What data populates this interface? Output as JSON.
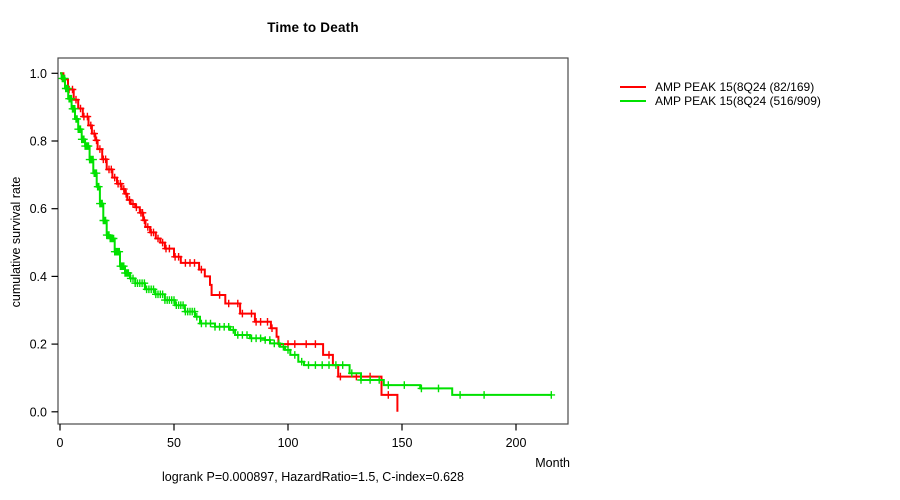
{
  "title": "Time to Death",
  "caption": "logrank P=0.000897, HazardRatio=1.5, C-index=0.628",
  "axes": {
    "y_label": "cumulative survival rate",
    "x_label": "Month"
  },
  "chart_data": {
    "type": "line",
    "subtype": "kaplan-meier-step-survival",
    "title": "Time to Death",
    "xlabel": "Month",
    "ylabel": "cumulative survival rate",
    "xlim": [
      0,
      223
    ],
    "ylim": [
      0.0,
      1.0
    ],
    "x_ticks": [
      0,
      50,
      100,
      150,
      200
    ],
    "y_ticks": [
      0.0,
      0.2,
      0.4,
      0.6,
      0.8,
      1.0
    ],
    "grid": false,
    "legend_position": "right-outside",
    "annotation": "logrank P=0.000897, HazardRatio=1.5, C-index=0.628",
    "series": [
      {
        "name": "AMP PEAK 15(8Q24 (82/169)",
        "color": "#ff0000",
        "end_month": 148,
        "steps": [
          [
            0,
            1.0
          ],
          [
            1.5,
            0.982
          ],
          [
            3.5,
            0.952
          ],
          [
            6,
            0.922
          ],
          [
            8,
            0.896
          ],
          [
            10,
            0.872
          ],
          [
            12.5,
            0.846
          ],
          [
            14,
            0.822
          ],
          [
            15.5,
            0.802
          ],
          [
            16.5,
            0.776
          ],
          [
            18.5,
            0.746
          ],
          [
            20.5,
            0.716
          ],
          [
            23,
            0.692
          ],
          [
            25,
            0.674
          ],
          [
            27,
            0.658
          ],
          [
            28.5,
            0.644
          ],
          [
            29.5,
            0.626
          ],
          [
            31,
            0.614
          ],
          [
            33,
            0.604
          ],
          [
            35,
            0.588
          ],
          [
            36.5,
            0.566
          ],
          [
            37.5,
            0.546
          ],
          [
            39.5,
            0.53
          ],
          [
            42,
            0.512
          ],
          [
            44,
            0.5
          ],
          [
            46,
            0.482
          ],
          [
            50,
            0.458
          ],
          [
            53,
            0.44
          ],
          [
            61,
            0.42
          ],
          [
            63.5,
            0.4
          ],
          [
            65.8,
            0.375
          ],
          [
            66.5,
            0.345
          ],
          [
            72.5,
            0.32
          ],
          [
            79,
            0.29
          ],
          [
            85.5,
            0.266
          ],
          [
            92.5,
            0.247
          ],
          [
            95,
            0.222
          ],
          [
            95.8,
            0.2
          ],
          [
            115.4,
            0.168
          ],
          [
            119.7,
            0.138
          ],
          [
            122,
            0.104
          ],
          [
            141,
            0.05
          ],
          [
            148,
            0.0
          ]
        ],
        "censor_months": [
          2,
          4,
          5.5,
          7,
          9,
          10.5,
          12,
          13.5,
          15,
          16,
          17.5,
          19,
          20,
          21.5,
          22.5,
          24,
          25.5,
          26.5,
          28,
          29,
          30.5,
          32,
          33.5,
          35.5,
          36.2,
          37,
          38.5,
          40,
          41,
          43,
          45,
          46.5,
          48,
          50.5,
          52,
          55,
          57,
          59,
          62,
          70,
          74,
          78,
          80,
          84,
          86,
          88,
          91,
          93,
          100,
          103,
          108,
          112,
          118,
          123,
          130,
          136,
          144
        ]
      },
      {
        "name": "AMP PEAK 15(8Q24 (516/909)",
        "color": "#00e100",
        "end_month": 215.7,
        "steps": [
          [
            0,
            1.0
          ],
          [
            0.7,
            0.985
          ],
          [
            2.2,
            0.955
          ],
          [
            3.6,
            0.925
          ],
          [
            5.1,
            0.895
          ],
          [
            6.6,
            0.865
          ],
          [
            8,
            0.835
          ],
          [
            9.5,
            0.805
          ],
          [
            11,
            0.785
          ],
          [
            13,
            0.745
          ],
          [
            14.6,
            0.705
          ],
          [
            16.1,
            0.665
          ],
          [
            17.5,
            0.615
          ],
          [
            19,
            0.565
          ],
          [
            20.5,
            0.522
          ],
          [
            22,
            0.512
          ],
          [
            24,
            0.473
          ],
          [
            26.3,
            0.43
          ],
          [
            28.5,
            0.41
          ],
          [
            30.7,
            0.394
          ],
          [
            33,
            0.38
          ],
          [
            37.3,
            0.362
          ],
          [
            41.7,
            0.347
          ],
          [
            46,
            0.33
          ],
          [
            50.4,
            0.315
          ],
          [
            54.8,
            0.296
          ],
          [
            59.2,
            0.281
          ],
          [
            61.4,
            0.261
          ],
          [
            68,
            0.251
          ],
          [
            74.6,
            0.242
          ],
          [
            76.8,
            0.227
          ],
          [
            83.3,
            0.217
          ],
          [
            89.9,
            0.212
          ],
          [
            92.1,
            0.202
          ],
          [
            96.5,
            0.192
          ],
          [
            98.7,
            0.183
          ],
          [
            101,
            0.168
          ],
          [
            104.5,
            0.148
          ],
          [
            107,
            0.138
          ],
          [
            127,
            0.114
          ],
          [
            132,
            0.094
          ],
          [
            142,
            0.079
          ],
          [
            158,
            0.069
          ],
          [
            172,
            0.05
          ]
        ],
        "censor_months": [
          1,
          1.5,
          2,
          2.5,
          3,
          3.5,
          4,
          4.5,
          5,
          5.5,
          6,
          6.5,
          7,
          7.5,
          8,
          8.5,
          9,
          9.5,
          10,
          10.5,
          11,
          11.5,
          12,
          12.5,
          13,
          13.5,
          14,
          14.5,
          15,
          15.5,
          16,
          16.5,
          17,
          17.5,
          18,
          18.5,
          19,
          19.5,
          20,
          20.5,
          21,
          21.5,
          22,
          22.5,
          23,
          23.5,
          24,
          24.5,
          25,
          25.5,
          26,
          26.5,
          27,
          27.5,
          28,
          28.5,
          29,
          29.5,
          30,
          31,
          32,
          33,
          34,
          35,
          36,
          37,
          38,
          39,
          40,
          41,
          42,
          43,
          44,
          45,
          46,
          47,
          48,
          49,
          50,
          51,
          52,
          53,
          54,
          55,
          56,
          57,
          58,
          59,
          60,
          62,
          64,
          66,
          68,
          70,
          72,
          74,
          76,
          78,
          80,
          82,
          84,
          86,
          88,
          90,
          92,
          94,
          96,
          98,
          100,
          103,
          106,
          109,
          112,
          115,
          118,
          121,
          124,
          128,
          132,
          136,
          140,
          144,
          151,
          158.5,
          166,
          175.5,
          186,
          215.5
        ]
      }
    ]
  }
}
